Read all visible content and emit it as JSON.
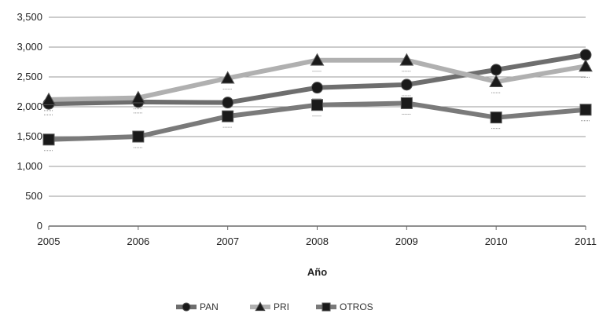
{
  "chart_data": {
    "type": "line",
    "x": [
      "2005",
      "2006",
      "2007",
      "2008",
      "2009",
      "2010",
      "2011"
    ],
    "xlabel": "Año",
    "ylabel": "",
    "ylim": [
      0,
      3500
    ],
    "yticks": [
      "0",
      "500",
      "1,000",
      "1,500",
      "2,000",
      "2,500",
      "3,000",
      "3,500"
    ],
    "grid": true,
    "legend_position": "bottom",
    "series": [
      {
        "name": "PAN",
        "marker": "circle",
        "color": "#6e6e6e",
        "values": [
          2050,
          2080,
          2070,
          2320,
          2370,
          2620,
          2870
        ]
      },
      {
        "name": "PRI",
        "marker": "triangle",
        "color": "#b0b0b0",
        "values": [
          2120,
          2150,
          2480,
          2780,
          2780,
          2420,
          2680
        ]
      },
      {
        "name": "OTROS",
        "marker": "square",
        "color": "#7a7a7a",
        "values": [
          1450,
          1500,
          1840,
          2030,
          2060,
          1820,
          1950
        ]
      }
    ]
  }
}
